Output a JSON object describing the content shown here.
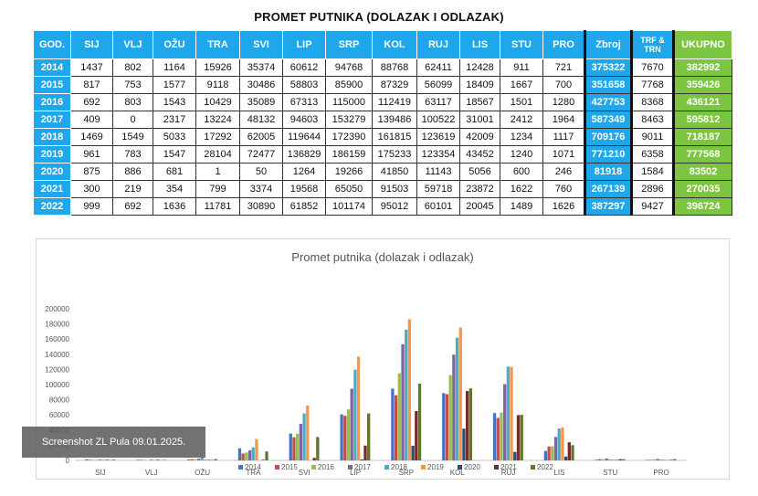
{
  "table": {
    "title": "PROMET PUTNIKA (DOLAZAK I ODLAZAK)",
    "headers": [
      "GOD.",
      "SIJ",
      "VLJ",
      "OŽU",
      "TRA",
      "SVI",
      "LIP",
      "SRP",
      "KOL",
      "RUJ",
      "LIS",
      "STU",
      "PRO",
      "Zbroj",
      "TRF & TRN",
      "UKUPNO"
    ],
    "rows": [
      [
        "2014",
        "1437",
        "802",
        "1164",
        "15926",
        "35374",
        "60612",
        "94768",
        "88768",
        "62411",
        "12428",
        "911",
        "721",
        "375322",
        "7670",
        "382992"
      ],
      [
        "2015",
        "817",
        "753",
        "1577",
        "9118",
        "30486",
        "58803",
        "85900",
        "87329",
        "56099",
        "18409",
        "1667",
        "700",
        "351658",
        "7768",
        "359426"
      ],
      [
        "2016",
        "692",
        "803",
        "1543",
        "10429",
        "35089",
        "67313",
        "115000",
        "112419",
        "63117",
        "18567",
        "1501",
        "1280",
        "427753",
        "8368",
        "436121"
      ],
      [
        "2017",
        "409",
        "0",
        "2317",
        "13224",
        "48132",
        "94603",
        "153279",
        "139486",
        "100522",
        "31001",
        "2412",
        "1964",
        "587349",
        "8463",
        "595812"
      ],
      [
        "2018",
        "1469",
        "1549",
        "5033",
        "17292",
        "62005",
        "119644",
        "172390",
        "161815",
        "123619",
        "42009",
        "1234",
        "1117",
        "709176",
        "9011",
        "718187"
      ],
      [
        "2019",
        "961",
        "783",
        "1547",
        "28104",
        "72477",
        "136829",
        "186159",
        "175233",
        "123354",
        "43452",
        "1240",
        "1071",
        "771210",
        "6358",
        "777568"
      ],
      [
        "2020",
        "875",
        "886",
        "681",
        "1",
        "50",
        "1264",
        "19266",
        "41850",
        "11143",
        "5056",
        "600",
        "246",
        "81918",
        "1584",
        "83502"
      ],
      [
        "2021",
        "300",
        "219",
        "354",
        "799",
        "3374",
        "19568",
        "65050",
        "91503",
        "59718",
        "23872",
        "1622",
        "760",
        "267139",
        "2896",
        "270035"
      ],
      [
        "2022",
        "999",
        "692",
        "1636",
        "11781",
        "30890",
        "61852",
        "101174",
        "95012",
        "60101",
        "20045",
        "1489",
        "1626",
        "387297",
        "9427",
        "396724"
      ]
    ]
  },
  "chart_data": {
    "type": "bar",
    "title": "Promet putnika (dolazak i odlazak)",
    "xlabel": "",
    "ylabel": "",
    "ylim": [
      0,
      200000
    ],
    "yticks": [
      0,
      20000,
      40000,
      60000,
      80000,
      100000,
      120000,
      140000,
      160000,
      180000,
      200000
    ],
    "grid": false,
    "legend": "bottom",
    "categories": [
      "SIJ",
      "VLJ",
      "OŽU",
      "TRA",
      "SVI",
      "LIP",
      "SRP",
      "KOL",
      "RUJ",
      "LIS",
      "STU",
      "PRO"
    ],
    "series": [
      {
        "name": "2014",
        "color": "#4472c4",
        "values": [
          1437,
          802,
          1164,
          15926,
          35374,
          60612,
          94768,
          88768,
          62411,
          12428,
          911,
          721
        ]
      },
      {
        "name": "2015",
        "color": "#c0504d",
        "values": [
          817,
          753,
          1577,
          9118,
          30486,
          58803,
          85900,
          87329,
          56099,
          18409,
          1667,
          700
        ]
      },
      {
        "name": "2016",
        "color": "#9bbb59",
        "values": [
          692,
          803,
          1543,
          10429,
          35089,
          67313,
          115000,
          112419,
          63117,
          18567,
          1501,
          1280
        ]
      },
      {
        "name": "2017",
        "color": "#8064a2",
        "values": [
          409,
          0,
          2317,
          13224,
          48132,
          94603,
          153279,
          139486,
          100522,
          31001,
          2412,
          1964
        ]
      },
      {
        "name": "2018",
        "color": "#4bacc6",
        "values": [
          1469,
          1549,
          5033,
          17292,
          62005,
          119644,
          172390,
          161815,
          123619,
          42009,
          1234,
          1117
        ]
      },
      {
        "name": "2019",
        "color": "#f79646",
        "values": [
          961,
          783,
          1547,
          28104,
          72477,
          136829,
          186159,
          175233,
          123354,
          43452,
          1240,
          1071
        ]
      },
      {
        "name": "2020",
        "color": "#2c4d75",
        "values": [
          875,
          886,
          681,
          1,
          50,
          1264,
          19266,
          41850,
          11143,
          5056,
          600,
          246
        ]
      },
      {
        "name": "2021",
        "color": "#772c2a",
        "values": [
          300,
          219,
          354,
          799,
          3374,
          19568,
          65050,
          91503,
          59718,
          23872,
          1622,
          760
        ]
      },
      {
        "name": "2022",
        "color": "#5f7530",
        "values": [
          999,
          692,
          1636,
          11781,
          30890,
          61852,
          101174,
          95012,
          60101,
          20045,
          1489,
          1626
        ]
      }
    ]
  },
  "watermark": "Screenshot ZL Pula 09.01.2025."
}
